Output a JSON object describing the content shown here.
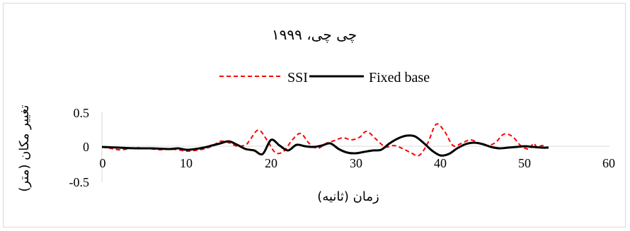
{
  "chart_data": {
    "type": "line",
    "title": "چی چی، ۱۹۹۹",
    "xlabel": "زمان (ثانیه)",
    "ylabel": "تغییر مکان (متر)",
    "xlim": [
      0,
      60
    ],
    "ylim": [
      -0.5,
      0.5
    ],
    "x_ticks": [
      "0",
      "10",
      "20",
      "30",
      "40",
      "50",
      "60"
    ],
    "y_ticks": [
      "0.5",
      "0",
      "-0.5"
    ],
    "legend_position": "top",
    "grid": false,
    "series": [
      {
        "name": "SSI",
        "color": "#ff0000",
        "style": "dashed",
        "x": [
          0,
          1,
          2,
          3,
          4,
          5,
          6,
          7,
          8,
          9,
          10,
          11,
          12,
          13,
          14,
          15,
          16,
          17,
          17.5,
          18.5,
          19.5,
          20.5,
          21.5,
          22.5,
          23.5,
          24.5,
          25.5,
          26.5,
          27.5,
          28.5,
          29.5,
          30.5,
          31.3,
          32.5,
          33.5,
          34.5,
          35.5,
          36.5,
          37.5,
          38.5,
          39.5,
          40.5,
          41.5,
          42.5,
          43.5,
          44.5,
          45.5,
          46.5,
          47.5,
          48.5,
          49.5,
          50.5,
          51,
          51.5,
          52,
          52.8
        ],
        "y": [
          0,
          -0.02,
          -0.04,
          -0.03,
          -0.01,
          -0.02,
          -0.03,
          -0.04,
          -0.03,
          -0.04,
          -0.06,
          -0.05,
          -0.03,
          0.01,
          0.08,
          0.06,
          0.01,
          0.03,
          0.1,
          0.24,
          0.1,
          -0.08,
          -0.06,
          0.1,
          0.19,
          0.05,
          -0.02,
          0.05,
          0.09,
          0.13,
          0.1,
          0.14,
          0.22,
          0.1,
          0.0,
          0.02,
          -0.02,
          -0.08,
          -0.12,
          0.05,
          0.32,
          0.22,
          0.02,
          0.05,
          0.1,
          0.06,
          0.02,
          0.06,
          0.18,
          0.15,
          0.02,
          -0.03,
          0.05,
          -0.01,
          0.02,
          -0.01
        ]
      },
      {
        "name": "Fixed base",
        "color": "#000000",
        "style": "solid",
        "x": [
          0,
          2,
          4,
          6,
          8,
          9,
          10,
          11,
          12,
          13,
          14,
          15,
          16,
          17,
          18,
          19,
          20,
          21,
          22,
          23,
          24,
          25,
          26,
          27,
          28,
          29,
          30,
          31,
          32,
          33,
          34,
          35,
          36,
          37,
          38,
          39,
          40,
          41,
          42,
          43,
          44,
          45,
          46,
          47,
          48,
          49,
          50,
          51,
          52,
          52.8
        ],
        "y": [
          0,
          -0.01,
          -0.02,
          -0.02,
          -0.03,
          -0.02,
          -0.04,
          -0.03,
          -0.01,
          0.02,
          0.05,
          0.08,
          0.03,
          -0.03,
          -0.05,
          -0.1,
          0.1,
          0.02,
          -0.05,
          0.03,
          0.01,
          0.0,
          0.02,
          0.05,
          -0.03,
          -0.08,
          -0.09,
          -0.07,
          -0.05,
          -0.04,
          0.05,
          0.12,
          0.16,
          0.15,
          0.06,
          -0.05,
          -0.12,
          -0.1,
          -0.02,
          0.04,
          0.06,
          0.04,
          0.0,
          -0.02,
          -0.01,
          0.0,
          0.01,
          0.0,
          -0.01,
          -0.01
        ]
      }
    ]
  }
}
